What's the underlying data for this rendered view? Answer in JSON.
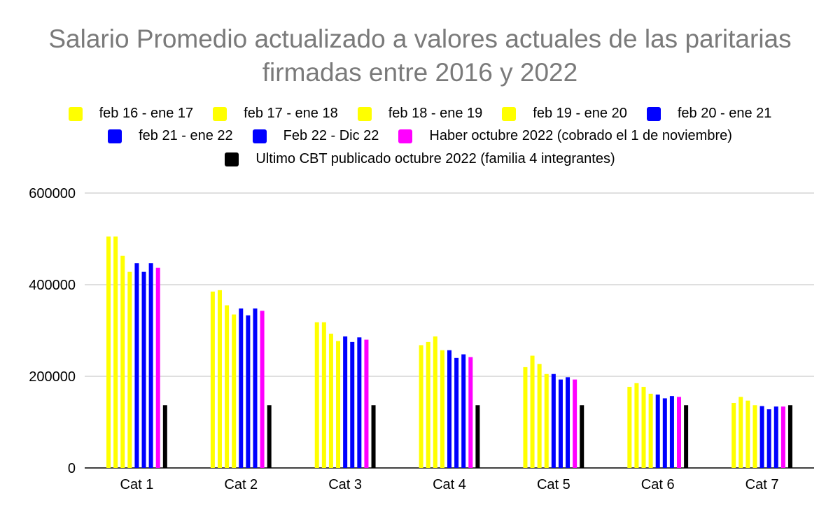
{
  "chart_data": {
    "type": "bar",
    "title": "Salario Promedio actualizado a valores actuales de las paritarias firmadas entre 2016 y 2022",
    "title_lines": [
      "Salario Promedio actualizado a valores actuales de las paritarias",
      "firmadas entre 2016 y 2022"
    ],
    "xlabel": "",
    "ylabel": "",
    "ylim": [
      0,
      600000
    ],
    "yticks": [
      0,
      200000,
      400000,
      600000
    ],
    "ytick_labels": [
      "0",
      "200000",
      "400000",
      "600000"
    ],
    "grid": true,
    "legend_position": "top",
    "categories": [
      "Cat 1",
      "Cat 2",
      "Cat 3",
      "Cat 4",
      "Cat 5",
      "Cat 6",
      "Cat 7"
    ],
    "series": [
      {
        "name": "feb 16 - ene 17",
        "color": "#FFFF00",
        "values": [
          505000,
          385000,
          318000,
          268000,
          220000,
          177000,
          142000
        ]
      },
      {
        "name": "feb 17 - ene 18",
        "color": "#FFFF00",
        "values": [
          505000,
          388000,
          318000,
          275000,
          245000,
          185000,
          155000
        ]
      },
      {
        "name": "feb 18 - ene 19",
        "color": "#FFFF00",
        "values": [
          463000,
          355000,
          293000,
          287000,
          227000,
          177000,
          147000
        ]
      },
      {
        "name": "feb 19 - ene 20",
        "color": "#FFFF00",
        "values": [
          428000,
          335000,
          277000,
          257000,
          205000,
          162000,
          137000
        ]
      },
      {
        "name": "feb 20 - ene 21",
        "color": "#0000FF",
        "values": [
          447000,
          348000,
          287000,
          257000,
          205000,
          160000,
          135000
        ]
      },
      {
        "name": "feb 21 - ene 22",
        "color": "#0000FF",
        "values": [
          428000,
          333000,
          275000,
          240000,
          193000,
          152000,
          128000
        ]
      },
      {
        "name": "Feb 22 - Dic 22",
        "color": "#0000FF",
        "values": [
          447000,
          348000,
          285000,
          248000,
          198000,
          157000,
          134000
        ]
      },
      {
        "name": "Haber octubre 2022 (cobrado el 1 de noviembre)",
        "color": "#FF00FF",
        "values": [
          437000,
          343000,
          280000,
          242000,
          193000,
          155000,
          134000
        ]
      },
      {
        "name": "Ultimo CBT publicado octubre 2022 (familia 4 integrantes)",
        "color": "#000000",
        "values": [
          137000,
          137000,
          137000,
          137000,
          137000,
          137000,
          137000
        ]
      }
    ]
  }
}
